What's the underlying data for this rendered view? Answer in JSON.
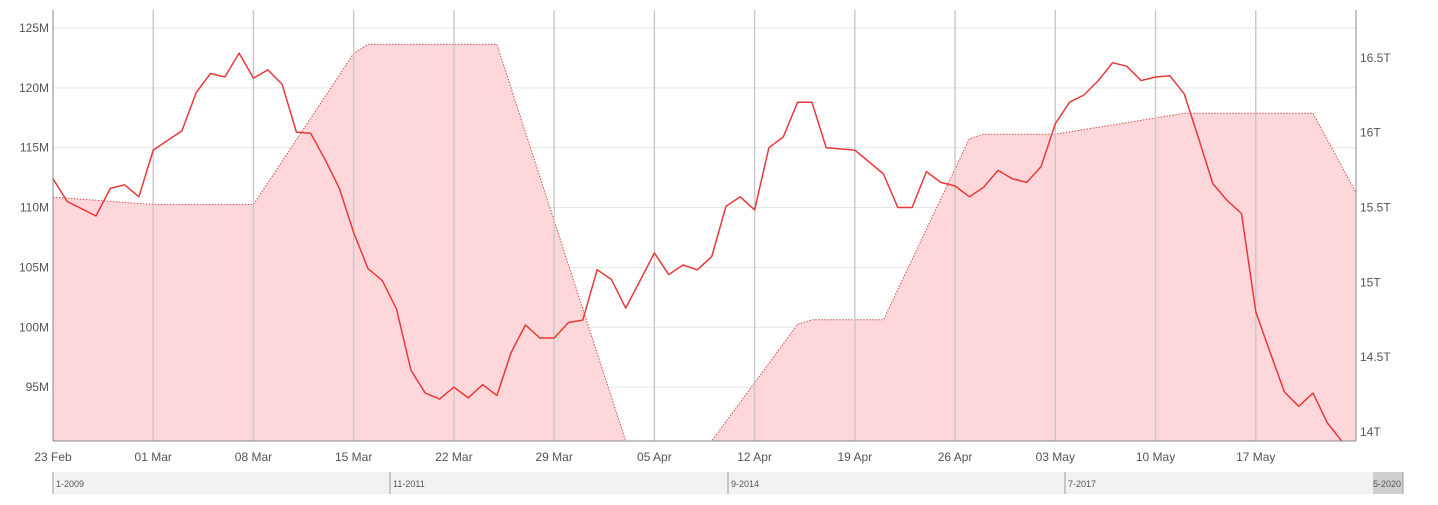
{
  "chart_data": {
    "type": "line",
    "title": "",
    "x_start": "2020-02-23",
    "x_end": "2020-05-24",
    "x_tick_labels": [
      "23 Feb",
      "01 Mar",
      "08 Mar",
      "15 Mar",
      "22 Mar",
      "29 Mar",
      "05 Apr",
      "12 Apr",
      "19 Apr",
      "26 Apr",
      "03 May",
      "10 May",
      "17 May"
    ],
    "left_axis": {
      "ticks": [
        95,
        100,
        105,
        110,
        115,
        120,
        125
      ],
      "tick_labels": [
        "95M",
        "100M",
        "105M",
        "110M",
        "115M",
        "120M",
        "125M"
      ],
      "range": [
        90.5,
        126.5
      ]
    },
    "right_axis": {
      "ticks": [
        14,
        14.5,
        15,
        15.5,
        16,
        16.5
      ],
      "tick_labels": [
        "14T",
        "14.5T",
        "15T",
        "15.5T",
        "16T",
        "16.5T"
      ],
      "range": [
        13.94,
        16.82
      ]
    },
    "grid": true,
    "series": [
      {
        "axis": "left",
        "style": "solid line",
        "color": "#e8393a",
        "points": [
          [
            "2020-02-23",
            112.4
          ],
          [
            "2020-02-24",
            110.5
          ],
          [
            "2020-02-25",
            109.9
          ],
          [
            "2020-02-26",
            109.3
          ],
          [
            "2020-02-27",
            111.6
          ],
          [
            "2020-02-28",
            111.9
          ],
          [
            "2020-02-29",
            110.9
          ],
          [
            "2020-03-01",
            114.8
          ],
          [
            "2020-03-02",
            115.6
          ],
          [
            "2020-03-03",
            116.4
          ],
          [
            "2020-03-04",
            119.6
          ],
          [
            "2020-03-05",
            121.2
          ],
          [
            "2020-03-06",
            120.9
          ],
          [
            "2020-03-07",
            122.9
          ],
          [
            "2020-03-08",
            120.8
          ],
          [
            "2020-03-09",
            121.5
          ],
          [
            "2020-03-10",
            120.3
          ],
          [
            "2020-03-11",
            116.3
          ],
          [
            "2020-03-12",
            116.2
          ],
          [
            "2020-03-13",
            114.0
          ],
          [
            "2020-03-14",
            111.6
          ],
          [
            "2020-03-15",
            107.9
          ],
          [
            "2020-03-16",
            104.9
          ],
          [
            "2020-03-17",
            103.9
          ],
          [
            "2020-03-18",
            101.5
          ],
          [
            "2020-03-19",
            96.4
          ],
          [
            "2020-03-20",
            94.5
          ],
          [
            "2020-03-21",
            94.0
          ],
          [
            "2020-03-22",
            95.0
          ],
          [
            "2020-03-23",
            94.1
          ],
          [
            "2020-03-24",
            95.2
          ],
          [
            "2020-03-25",
            94.3
          ],
          [
            "2020-03-26",
            97.9
          ],
          [
            "2020-03-27",
            100.2
          ],
          [
            "2020-03-28",
            99.1
          ],
          [
            "2020-03-29",
            99.1
          ],
          [
            "2020-03-30",
            100.4
          ],
          [
            "2020-03-31",
            100.6
          ],
          [
            "2020-04-01",
            104.8
          ],
          [
            "2020-04-02",
            104.0
          ],
          [
            "2020-04-03",
            101.6
          ],
          [
            "2020-04-04",
            103.9
          ],
          [
            "2020-04-05",
            106.2
          ],
          [
            "2020-04-06",
            104.4
          ],
          [
            "2020-04-07",
            105.2
          ],
          [
            "2020-04-08",
            104.8
          ],
          [
            "2020-04-09",
            105.9
          ],
          [
            "2020-04-10",
            110.1
          ],
          [
            "2020-04-11",
            110.9
          ],
          [
            "2020-04-12",
            109.8
          ],
          [
            "2020-04-13",
            115.0
          ],
          [
            "2020-04-14",
            115.9
          ],
          [
            "2020-04-15",
            118.8
          ],
          [
            "2020-04-16",
            118.8
          ],
          [
            "2020-04-17",
            115.0
          ],
          [
            "2020-04-18",
            114.9
          ],
          [
            "2020-04-19",
            114.8
          ],
          [
            "2020-04-20",
            113.8
          ],
          [
            "2020-04-21",
            112.8
          ],
          [
            "2020-04-22",
            110.0
          ],
          [
            "2020-04-23",
            110.0
          ],
          [
            "2020-04-24",
            113.0
          ],
          [
            "2020-04-25",
            112.1
          ],
          [
            "2020-04-26",
            111.8
          ],
          [
            "2020-04-27",
            110.9
          ],
          [
            "2020-04-28",
            111.7
          ],
          [
            "2020-04-29",
            113.1
          ],
          [
            "2020-04-30",
            112.4
          ],
          [
            "2020-05-01",
            112.1
          ],
          [
            "2020-05-02",
            113.4
          ],
          [
            "2020-05-03",
            117.0
          ],
          [
            "2020-05-04",
            118.8
          ],
          [
            "2020-05-05",
            119.4
          ],
          [
            "2020-05-06",
            120.6
          ],
          [
            "2020-05-07",
            122.1
          ],
          [
            "2020-05-08",
            121.8
          ],
          [
            "2020-05-09",
            120.6
          ],
          [
            "2020-05-10",
            120.9
          ],
          [
            "2020-05-11",
            121.0
          ],
          [
            "2020-05-12",
            119.5
          ],
          [
            "2020-05-13",
            115.8
          ],
          [
            "2020-05-14",
            112.0
          ],
          [
            "2020-05-15",
            110.6
          ],
          [
            "2020-05-16",
            109.5
          ],
          [
            "2020-05-17",
            101.3
          ],
          [
            "2020-05-18",
            97.9
          ],
          [
            "2020-05-19",
            94.6
          ],
          [
            "2020-05-20",
            93.4
          ],
          [
            "2020-05-21",
            94.5
          ],
          [
            "2020-05-22",
            92.0
          ],
          [
            "2020-05-23",
            90.5
          ]
        ]
      },
      {
        "axis": "right",
        "style": "dotted line with shaded area",
        "color": "#d9534f",
        "fill": "#fdd7d9",
        "points": [
          [
            "2020-02-23",
            15.57
          ],
          [
            "2020-03-01",
            15.52
          ],
          [
            "2020-03-08",
            15.52
          ],
          [
            "2020-03-15",
            16.53
          ],
          [
            "2020-03-16",
            16.59
          ],
          [
            "2020-03-25",
            16.59
          ],
          [
            "2020-04-03",
            13.94
          ],
          [
            "2020-04-09",
            13.94
          ],
          [
            "2020-04-15",
            14.72
          ],
          [
            "2020-04-16",
            14.75
          ],
          [
            "2020-04-21",
            14.75
          ],
          [
            "2020-04-27",
            15.96
          ],
          [
            "2020-04-28",
            15.99
          ],
          [
            "2020-05-03",
            15.99
          ],
          [
            "2020-05-12",
            16.13
          ],
          [
            "2020-05-21",
            16.13
          ],
          [
            "2020-05-24",
            15.6
          ]
        ]
      }
    ]
  },
  "navigator": {
    "labels": [
      "1-2009",
      "11-2011",
      "9-2014",
      "7-2017",
      "5-2020"
    ]
  }
}
